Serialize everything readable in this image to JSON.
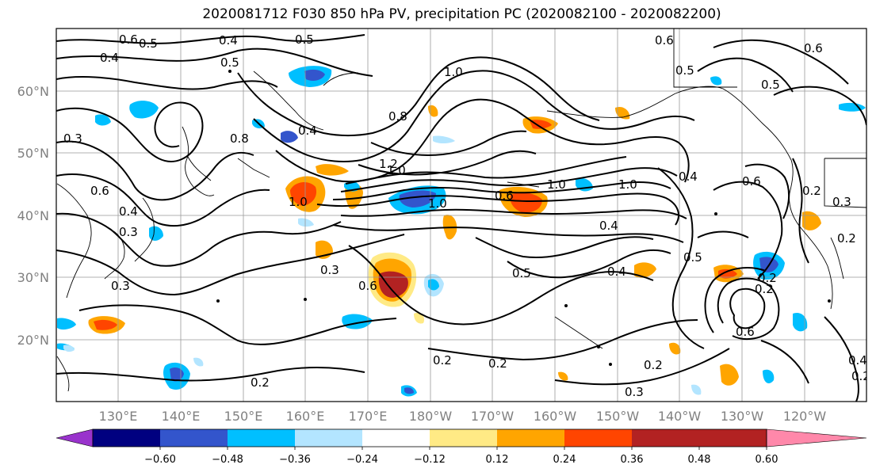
{
  "title": "2020081712 F030 850 hPa PV, precipitation PC (2020082100 - 2020082200)",
  "lat_labels": [
    "60°N",
    "50°N",
    "40°N",
    "30°N",
    "20°N"
  ],
  "lon_labels": [
    "130°E",
    "140°E",
    "150°E",
    "160°E",
    "170°E",
    "180°W",
    "170°W",
    "160°W",
    "150°W",
    "140°W",
    "130°W",
    "120°W"
  ],
  "contour_labels": [
    "0.6",
    "0.5",
    "0.4",
    "0.5",
    "0.5",
    "0.4",
    "0.6",
    "0.5",
    "0.6",
    "1.0",
    "0.8",
    "0.4",
    "0.8",
    "0.5",
    "0.3",
    "0.6",
    "1.2",
    "1.0",
    "0.4",
    "1.0",
    "0.3",
    "1.0",
    "0.6",
    "1.0",
    "1.0",
    "0.4",
    "0.4",
    "0.6",
    "0.3",
    "0.2",
    "0.3",
    "0.3",
    "0.5",
    "0.4",
    "0.5",
    "0.6",
    "0.2",
    "0.2",
    "0.6",
    "0.2",
    "0.2",
    "0.2",
    "0.2",
    "0.2",
    "0.3",
    "0.4",
    "0.2"
  ],
  "colorbar": {
    "colors": [
      "#9933cc",
      "#000080",
      "#3355cc",
      "#00bfff",
      "#b3e5ff",
      "#ffffff",
      "#ffea85",
      "#ffa500",
      "#ff4500",
      "#b22222",
      "#ff88aa"
    ],
    "ticks": [
      "−0.60",
      "−0.48",
      "−0.36",
      "−0.24",
      "−0.12",
      "0.12",
      "0.24",
      "0.36",
      "0.48",
      "0.60"
    ]
  }
}
